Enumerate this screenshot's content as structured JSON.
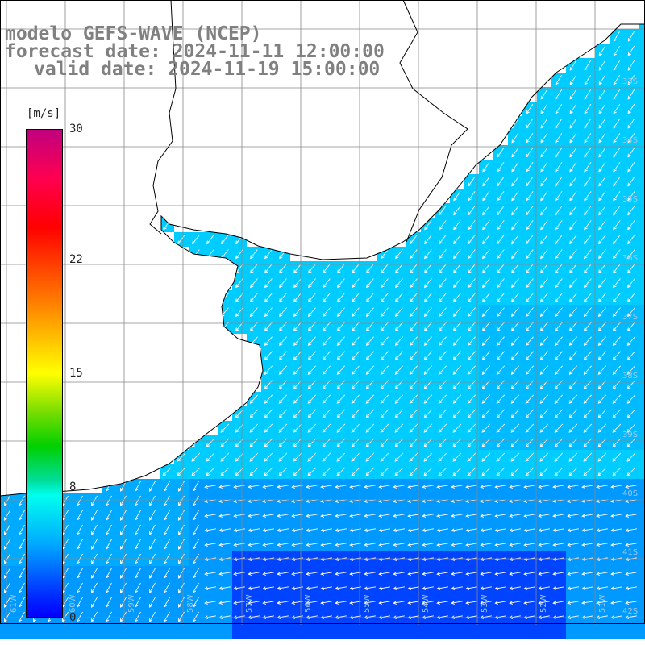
{
  "title": {
    "line1": "modelo GEFS-WAVE (NCEP)",
    "line2": "forecast date: 2024-11-11 12:00:00",
    "line3": "valid date: 2024-11-19 15:00:00"
  },
  "colorbar": {
    "unit": "[m/s]",
    "min": 0,
    "max": 30,
    "ticks": [
      {
        "label": "30",
        "value": 30
      },
      {
        "label": "22",
        "value": 22
      },
      {
        "label": "15",
        "value": 15
      },
      {
        "label": "8",
        "value": 8
      },
      {
        "label": "0",
        "value": 0
      }
    ]
  },
  "map": {
    "field": "wind speed / direction",
    "lat_labels": [
      "33S",
      "34S",
      "35S",
      "36S",
      "37S",
      "38S",
      "39S",
      "40S",
      "41S",
      "42S"
    ],
    "lon_labels": [
      "61W",
      "60W",
      "59W",
      "58W",
      "57W",
      "56W",
      "55W",
      "54W",
      "53W",
      "52W",
      "51W"
    ],
    "colors": {
      "sea_shallow": "#00ccff",
      "sea_mid": "#0099ff",
      "sea_deep": "#0044ff",
      "coast": "#000000",
      "grid": "#888888",
      "arrow": "#ffffff"
    }
  }
}
